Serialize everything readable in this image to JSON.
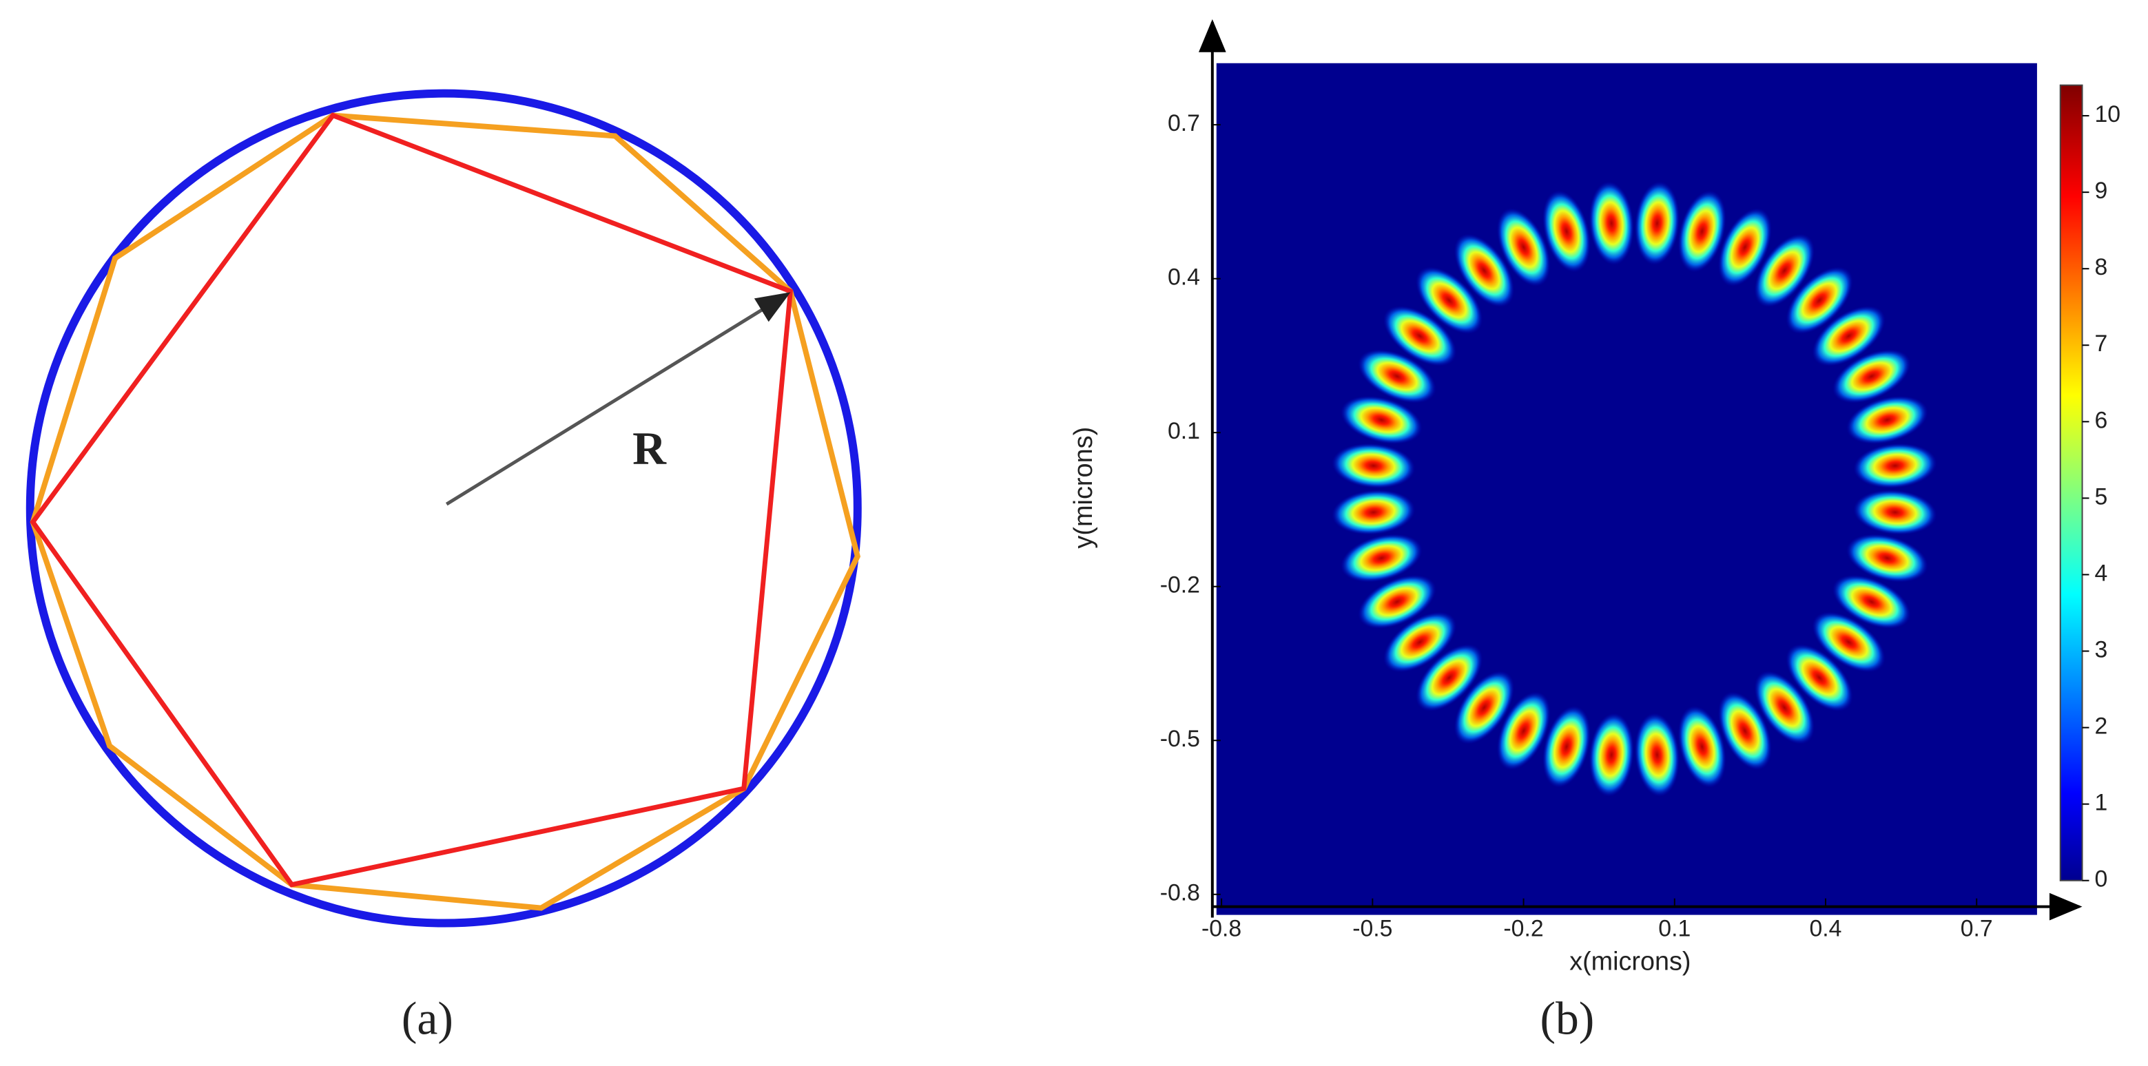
{
  "diagram": {
    "label": "R",
    "caption": "(a)"
  },
  "chart_data": {
    "type": "heatmap",
    "caption": "(b)",
    "xlabel": "x(microns)",
    "ylabel": "y(microns)",
    "xlim": [
      -0.81,
      0.82
    ],
    "xticks": [
      -0.8,
      -0.5,
      -0.2,
      0.1,
      0.4,
      0.7
    ],
    "ylim": [
      -0.84,
      0.82
    ],
    "yticks": [
      0.7,
      0.4,
      0.1,
      -0.2,
      -0.5,
      -0.8
    ],
    "colorbar": {
      "lim": [
        0,
        10.4
      ],
      "ticks": [
        0,
        1,
        2,
        3,
        4,
        5,
        6,
        7,
        8,
        9,
        10
      ]
    },
    "ring": {
      "center": [
        0.02,
        -0.01
      ],
      "radius": 0.52,
      "count": 36,
      "peak": 10.2
    }
  }
}
